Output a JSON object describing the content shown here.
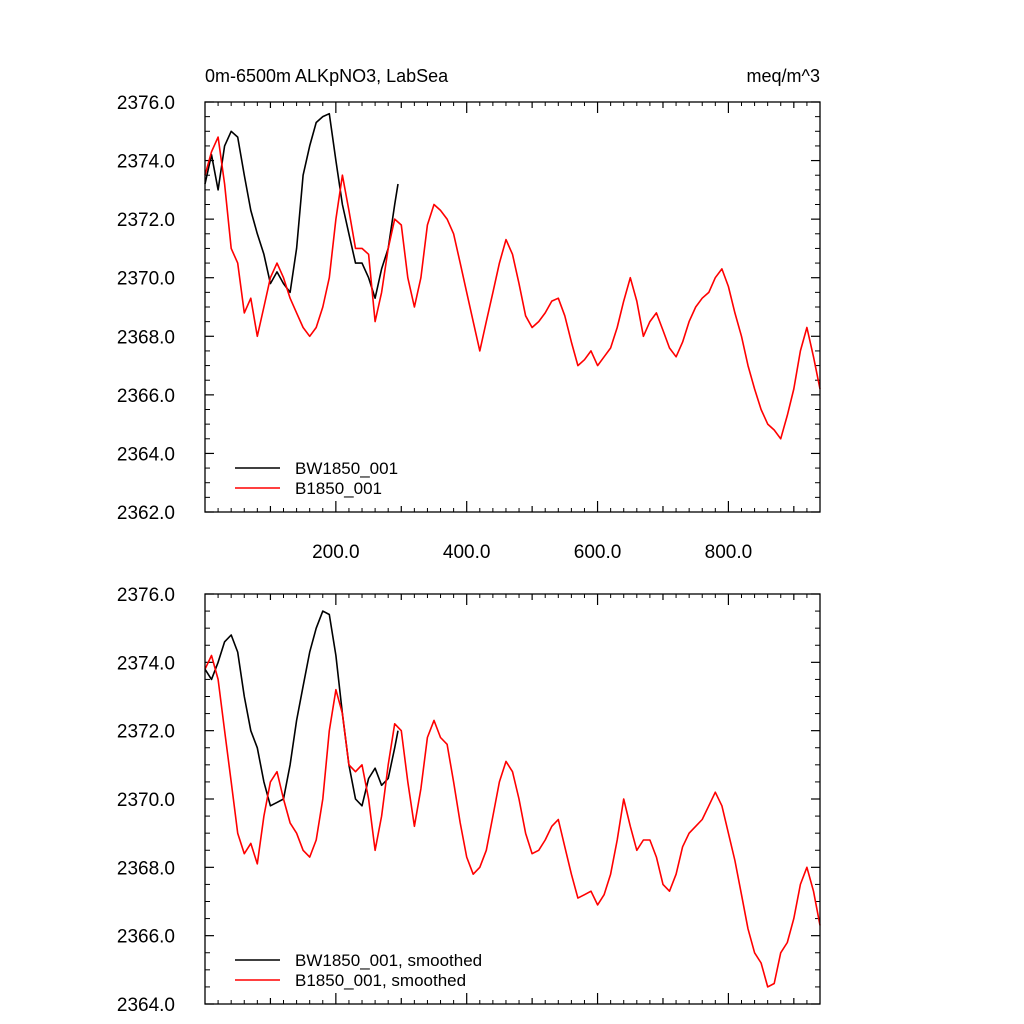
{
  "chart_data": [
    {
      "type": "line",
      "title": "0m-6500m ALKpNO3, LabSea",
      "units": "meq/m^3",
      "xlim": [
        0,
        940
      ],
      "ylim": [
        2362,
        2376
      ],
      "x_ticks": [
        "200.0",
        "400.0",
        "600.0",
        "800.0"
      ],
      "y_ticks": [
        "2362.0",
        "2364.0",
        "2366.0",
        "2368.0",
        "2370.0",
        "2372.0",
        "2374.0",
        "2376.0"
      ],
      "grid": false,
      "legend": "bottom-left",
      "series": [
        {
          "name": "BW1850_001",
          "color": "#000000",
          "x": [
            0,
            10,
            20,
            30,
            40,
            50,
            60,
            70,
            80,
            90,
            100,
            110,
            120,
            130,
            140,
            150,
            160,
            170,
            180,
            190,
            200,
            210,
            220,
            230,
            240,
            250,
            260,
            270,
            280,
            290,
            295
          ],
          "y": [
            2373.2,
            2374.2,
            2373.0,
            2374.5,
            2375.0,
            2374.8,
            2373.5,
            2372.3,
            2371.5,
            2370.8,
            2369.8,
            2370.2,
            2369.8,
            2369.5,
            2371.0,
            2373.5,
            2374.5,
            2375.3,
            2375.5,
            2375.6,
            2374.0,
            2372.5,
            2371.5,
            2370.5,
            2370.5,
            2370.0,
            2369.3,
            2370.3,
            2371.0,
            2372.5,
            2373.2
          ]
        },
        {
          "name": "B1850_001",
          "color": "#ff0000",
          "x": [
            0,
            10,
            20,
            30,
            40,
            50,
            60,
            70,
            80,
            90,
            100,
            110,
            120,
            130,
            140,
            150,
            160,
            170,
            180,
            190,
            200,
            210,
            220,
            230,
            240,
            250,
            260,
            270,
            280,
            290,
            300,
            310,
            320,
            330,
            340,
            350,
            360,
            370,
            380,
            390,
            400,
            410,
            420,
            430,
            440,
            450,
            460,
            470,
            480,
            490,
            500,
            510,
            520,
            530,
            540,
            550,
            560,
            570,
            580,
            590,
            600,
            610,
            620,
            630,
            640,
            650,
            660,
            670,
            680,
            690,
            700,
            710,
            720,
            730,
            740,
            750,
            760,
            770,
            780,
            790,
            800,
            810,
            820,
            830,
            840,
            850,
            860,
            870,
            880,
            890,
            900,
            910,
            920,
            930,
            940
          ],
          "y": [
            2373.5,
            2374.3,
            2374.8,
            2373.2,
            2371.0,
            2370.5,
            2368.8,
            2369.3,
            2368.0,
            2369.0,
            2370.0,
            2370.5,
            2370.0,
            2369.3,
            2368.8,
            2368.3,
            2368.0,
            2368.3,
            2369.0,
            2370.0,
            2372.0,
            2373.5,
            2372.3,
            2371.0,
            2371.0,
            2370.8,
            2368.5,
            2369.5,
            2371.0,
            2372.0,
            2371.8,
            2370.0,
            2369.0,
            2370.0,
            2371.8,
            2372.5,
            2372.3,
            2372.0,
            2371.5,
            2370.5,
            2369.5,
            2368.5,
            2367.5,
            2368.5,
            2369.5,
            2370.5,
            2371.3,
            2370.8,
            2369.8,
            2368.7,
            2368.3,
            2368.5,
            2368.8,
            2369.2,
            2369.3,
            2368.7,
            2367.8,
            2367.0,
            2367.2,
            2367.5,
            2367.0,
            2367.3,
            2367.6,
            2368.3,
            2369.2,
            2370.0,
            2369.2,
            2368.0,
            2368.5,
            2368.8,
            2368.2,
            2367.6,
            2367.3,
            2367.8,
            2368.5,
            2369.0,
            2369.3,
            2369.5,
            2370.0,
            2370.3,
            2369.7,
            2368.8,
            2368.0,
            2367.0,
            2366.2,
            2365.5,
            2365.0,
            2364.8,
            2364.5,
            2365.3,
            2366.2,
            2367.5,
            2368.3,
            2367.3,
            2366.2
          ]
        }
      ]
    },
    {
      "type": "line",
      "xlim": [
        0,
        940
      ],
      "ylim": [
        2364,
        2376
      ],
      "y_ticks": [
        "2364.0",
        "2366.0",
        "2368.0",
        "2370.0",
        "2372.0",
        "2374.0",
        "2376.0"
      ],
      "grid": false,
      "legend": "bottom-left",
      "series": [
        {
          "name": "BW1850_001, smoothed",
          "color": "#000000",
          "x": [
            0,
            10,
            20,
            30,
            40,
            50,
            60,
            70,
            80,
            90,
            100,
            110,
            120,
            130,
            140,
            150,
            160,
            170,
            180,
            190,
            200,
            210,
            220,
            230,
            240,
            250,
            260,
            270,
            280,
            290,
            295
          ],
          "y": [
            2373.8,
            2373.5,
            2374.0,
            2374.6,
            2374.8,
            2374.3,
            2373.0,
            2372.0,
            2371.5,
            2370.5,
            2369.8,
            2369.9,
            2370.0,
            2371.0,
            2372.3,
            2373.3,
            2374.3,
            2375.0,
            2375.5,
            2375.4,
            2374.2,
            2372.5,
            2371.0,
            2370.0,
            2369.8,
            2370.6,
            2370.9,
            2370.4,
            2370.6,
            2371.5,
            2372.0
          ]
        },
        {
          "name": "B1850_001, smoothed",
          "color": "#ff0000",
          "x": [
            0,
            10,
            20,
            30,
            40,
            50,
            60,
            70,
            80,
            90,
            100,
            110,
            120,
            130,
            140,
            150,
            160,
            170,
            180,
            190,
            200,
            210,
            220,
            230,
            240,
            250,
            260,
            270,
            280,
            290,
            300,
            310,
            320,
            330,
            340,
            350,
            360,
            370,
            380,
            390,
            400,
            410,
            420,
            430,
            440,
            450,
            460,
            470,
            480,
            490,
            500,
            510,
            520,
            530,
            540,
            550,
            560,
            570,
            580,
            590,
            600,
            610,
            620,
            630,
            640,
            650,
            660,
            670,
            680,
            690,
            700,
            710,
            720,
            730,
            740,
            750,
            760,
            770,
            780,
            790,
            800,
            810,
            820,
            830,
            840,
            850,
            860,
            870,
            880,
            890,
            900,
            910,
            920,
            930,
            940
          ],
          "y": [
            2373.8,
            2374.2,
            2373.5,
            2372.0,
            2370.5,
            2369.0,
            2368.4,
            2368.7,
            2368.1,
            2369.5,
            2370.5,
            2370.8,
            2370.0,
            2369.3,
            2369.0,
            2368.5,
            2368.3,
            2368.8,
            2370.0,
            2372.0,
            2373.2,
            2372.5,
            2371.0,
            2370.8,
            2371.0,
            2370.0,
            2368.5,
            2369.5,
            2371.0,
            2372.2,
            2372.0,
            2370.5,
            2369.2,
            2370.3,
            2371.8,
            2372.3,
            2371.8,
            2371.6,
            2370.5,
            2369.3,
            2368.3,
            2367.8,
            2368.0,
            2368.5,
            2369.5,
            2370.5,
            2371.1,
            2370.8,
            2370.0,
            2369.0,
            2368.4,
            2368.5,
            2368.8,
            2369.2,
            2369.4,
            2368.6,
            2367.8,
            2367.1,
            2367.2,
            2367.3,
            2366.9,
            2367.2,
            2367.8,
            2368.8,
            2370.0,
            2369.2,
            2368.5,
            2368.8,
            2368.8,
            2368.3,
            2367.5,
            2367.3,
            2367.8,
            2368.6,
            2369.0,
            2369.2,
            2369.4,
            2369.8,
            2370.2,
            2369.8,
            2369.0,
            2368.2,
            2367.2,
            2366.2,
            2365.5,
            2365.2,
            2364.5,
            2364.6,
            2365.5,
            2365.8,
            2366.5,
            2367.5,
            2368.0,
            2367.3,
            2366.3
          ]
        }
      ]
    }
  ]
}
